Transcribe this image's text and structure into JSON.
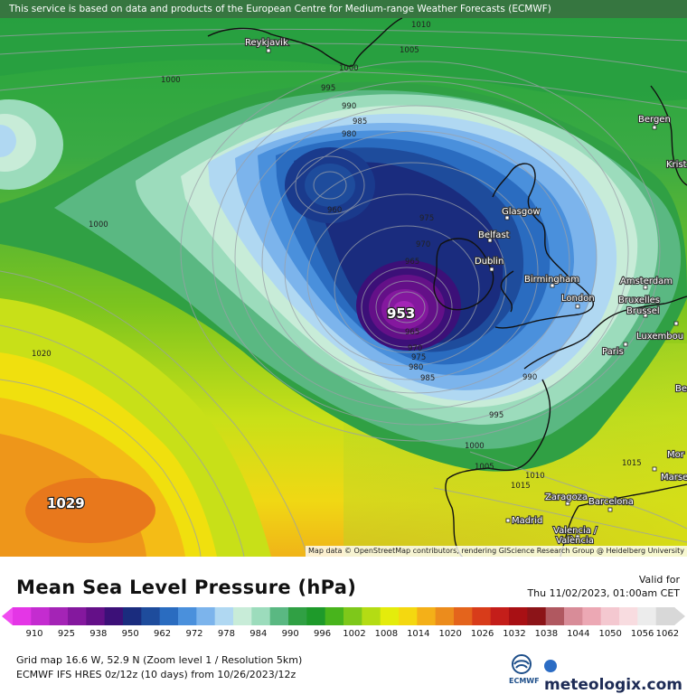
{
  "notice": "This service is based on data and products of the European Centre for Medium-range Weather Forecasts (ECMWF)",
  "attribution": "Map data © OpenStreetMap contributors, rendering GIScience Research Group @ Heidelberg University",
  "legend": {
    "title": "Mean Sea Level Pressure (hPa)",
    "valid_label": "Valid for",
    "valid_value": "Thu 11/02/2023, 01:00am CET",
    "ticks": [
      "910",
      "925",
      "938",
      "950",
      "962",
      "972",
      "978",
      "984",
      "990",
      "996",
      "1002",
      "1008",
      "1014",
      "1020",
      "1026",
      "1032",
      "1038",
      "1044",
      "1050",
      "1056",
      "1062"
    ],
    "colors": [
      "#e436e6",
      "#c42cd0",
      "#a424b6",
      "#84189e",
      "#641088",
      "#3c1078",
      "#1a2c7e",
      "#1e4c9c",
      "#2a6cc0",
      "#4a90dc",
      "#7cb4ec",
      "#b0d8f2",
      "#c8ecd8",
      "#9cdcbc",
      "#5ab882",
      "#30a044",
      "#1e9a2a",
      "#48b41c",
      "#7ec81a",
      "#b4dc14",
      "#e4ec0c",
      "#f4d810",
      "#f4b018",
      "#ec8c1c",
      "#e4641c",
      "#d83c1a",
      "#c41e1a",
      "#a81014",
      "#8c1418",
      "#b05860",
      "#d88c98",
      "#eca8b4",
      "#f4c8d0",
      "#f8dce0",
      "#ececec",
      "#d8d8d8"
    ]
  },
  "footer": {
    "grid_info": "Grid map 16.6 W, 52.9 N (Zoom level 1 / Resolution 5km)",
    "run_info": "ECMWF IFS HRES 0z/12z (10 days)  from  10/26/2023/12z",
    "ecmwf_logo_text": "ECMWF",
    "brand": "meteologix.com"
  },
  "map": {
    "places": [
      {
        "id": "reykjavik",
        "name": "Reykjavik"
      },
      {
        "id": "bergen",
        "name": "Bergen"
      },
      {
        "id": "kristiansand",
        "name": "Krist"
      },
      {
        "id": "glasgow",
        "name": "Glasgow"
      },
      {
        "id": "belfast",
        "name": "Belfast"
      },
      {
        "id": "dublin",
        "name": "Dublin"
      },
      {
        "id": "birmingham",
        "name": "Birmingham"
      },
      {
        "id": "london",
        "name": "London"
      },
      {
        "id": "amsterdam",
        "name": "Amsterdam"
      },
      {
        "id": "bruxelles",
        "name": "Bruxelles"
      },
      {
        "id": "brussel",
        "name": "Brussel"
      },
      {
        "id": "luxembourg",
        "name": "Luxembou"
      },
      {
        "id": "paris",
        "name": "Paris"
      },
      {
        "id": "zaragoza",
        "name": "Zaragoza"
      },
      {
        "id": "barcelona",
        "name": "Barcelona"
      },
      {
        "id": "madrid",
        "name": "Madrid"
      },
      {
        "id": "valencia1",
        "name": "Valencia /"
      },
      {
        "id": "valencia2",
        "name": "València"
      },
      {
        "id": "marseille",
        "name": "Marse"
      },
      {
        "id": "monaco",
        "name": "Mor"
      },
      {
        "id": "bern",
        "name": "Be"
      }
    ],
    "low_center": "953",
    "high_center": "1029",
    "isobar_labels": [
      "1010",
      "1005",
      "1000",
      "1000",
      "995",
      "990",
      "985",
      "980",
      "975",
      "970",
      "965",
      "960",
      "1000",
      "1020",
      "975",
      "970",
      "965",
      "980",
      "985",
      "990",
      "995",
      "1000",
      "1005",
      "1010",
      "1015",
      "1015",
      "1000"
    ]
  }
}
